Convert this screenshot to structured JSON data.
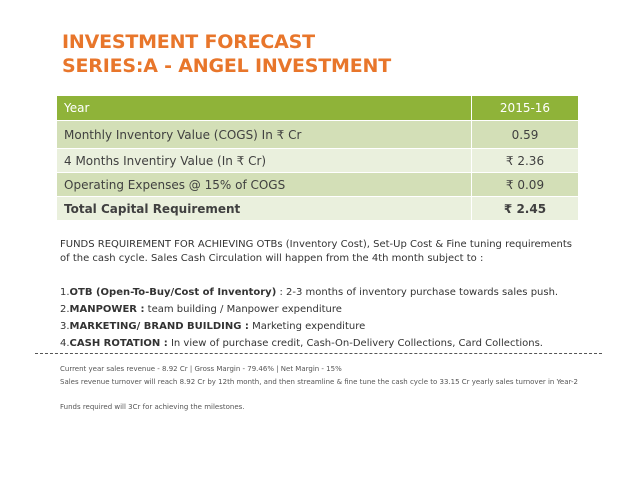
{
  "title": {
    "line1": "INVESTMENT FORECAST",
    "line2": "SERIES:A - ANGEL INVESTMENT"
  },
  "table": {
    "header": {
      "label": "Year",
      "value": "2015-16"
    },
    "rows": [
      {
        "label": "Monthly Inventory Value (COGS) In ₹ Cr",
        "value": "0.59"
      },
      {
        "label": "4 Months Inventiry Value (In ₹ Cr)",
        "value": "₹ 2.36"
      },
      {
        "label": "Operating Expenses @ 15% of COGS",
        "value": "₹ 0.09"
      },
      {
        "label": "Total Capital Requirement",
        "value": "₹ 2.45"
      }
    ]
  },
  "intro": "FUNDS REQUIREMENT FOR ACHIEVING OTBs (Inventory Cost), Set-Up Cost & Fine tuning requirements of the cash cycle. Sales Cash Circulation will happen from the 4th month subject to :",
  "points": [
    {
      "num": "1.",
      "bold": "OTB (Open-To-Buy/Cost of Inventory)",
      "rest": " : 2-3 months of inventory purchase towards sales push."
    },
    {
      "num": "2.",
      "bold": "MANPOWER :",
      "rest": " team building / Manpower expenditure"
    },
    {
      "num": "3.",
      "bold": "MARKETING/ BRAND BUILDING :",
      "rest": " Marketing expenditure"
    },
    {
      "num": "4.",
      "bold": "CASH ROTATION :",
      "rest": " In view of purchase credit, Cash-On-Delivery Collections, Card Collections."
    }
  ],
  "footer": {
    "line1": "Current year sales revenue - 8.92 Cr | Gross Margin - 79.46% | Net Margin - 15%",
    "line2": "Sales revenue turnover will reach 8.92 Cr by 12th month, and then streamline & fine tune the cash cycle to 33.15 Cr yearly sales turnover in Year-2",
    "line3": "Funds required will 3Cr for achieving the milestones."
  },
  "colors": {
    "title": "#e8762b",
    "table_header": "#8fb339",
    "row_dark": "#d3dfb7",
    "row_light": "#eaf0dd"
  }
}
